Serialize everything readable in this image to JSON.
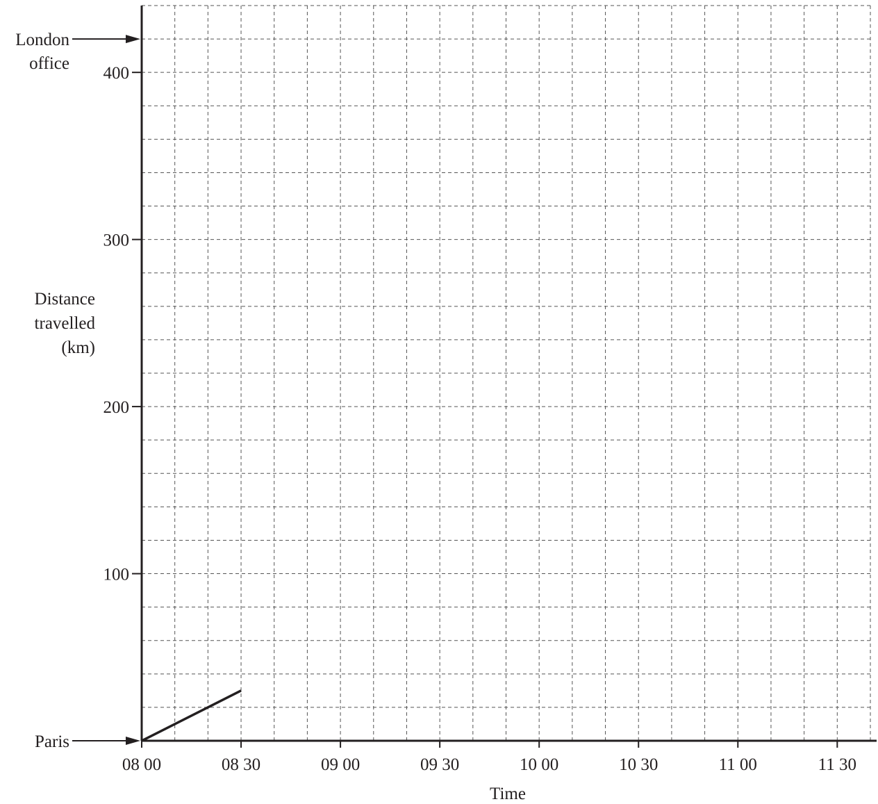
{
  "chart_data": {
    "type": "line",
    "xlabel": "Time",
    "ylabel_lines": [
      "Distance",
      "travelled",
      "(km)"
    ],
    "x_domain_minutes": [
      0,
      220
    ],
    "x_grid_step_minutes": 10,
    "x_ticks": [
      {
        "value": 0,
        "label": "08 00"
      },
      {
        "value": 30,
        "label": "08 30"
      },
      {
        "value": 60,
        "label": "09 00"
      },
      {
        "value": 90,
        "label": "09 30"
      },
      {
        "value": 120,
        "label": "10 00"
      },
      {
        "value": 150,
        "label": "10 30"
      },
      {
        "value": 180,
        "label": "11 00"
      },
      {
        "value": 210,
        "label": "11 30"
      }
    ],
    "ylim": [
      0,
      440
    ],
    "y_grid_step": 20,
    "y_ticks": [
      {
        "value": 100,
        "label": "100"
      },
      {
        "value": 200,
        "label": "200"
      },
      {
        "value": 300,
        "label": "300"
      },
      {
        "value": 400,
        "label": "400"
      }
    ],
    "grid": true,
    "markers": [
      {
        "value": 0,
        "lines": [
          "Paris"
        ]
      },
      {
        "value": 420,
        "lines": [
          "London",
          "office"
        ]
      }
    ],
    "series": [
      {
        "points": [
          {
            "x": 0,
            "y": 0
          },
          {
            "x": 30,
            "y": 30
          }
        ]
      }
    ]
  },
  "colors": {
    "ink": "#231f20",
    "grid": "#555555"
  }
}
